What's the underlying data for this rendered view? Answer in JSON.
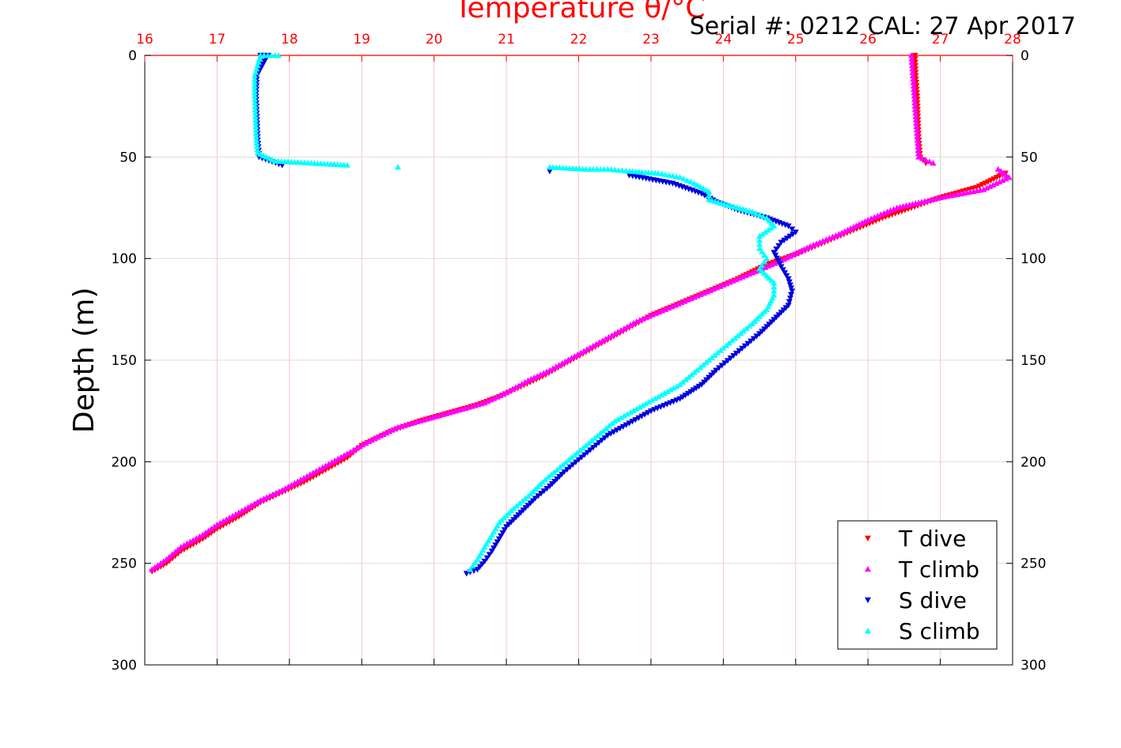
{
  "colors": {
    "t_dive": "#ff0000",
    "t_climb": "#ff00ff",
    "s_dive": "#0000dd",
    "s_climb": "#00ffff",
    "top_axis": "#ff0000",
    "grid": "#f2c8c8"
  },
  "chart_data": {
    "type": "scatter",
    "title": "Temperature θ/°C",
    "annotation": "Serial #: 0212  CAL: 27 Apr 2017",
    "xlabel": "Temperature θ/°C",
    "ylabel": "Depth (m)",
    "xlim": [
      16,
      28
    ],
    "ylim": [
      0,
      300
    ],
    "y_reversed": true,
    "xticks": [
      16,
      17,
      18,
      19,
      20,
      21,
      22,
      23,
      24,
      25,
      26,
      27,
      28
    ],
    "yticks": [
      0,
      50,
      100,
      150,
      200,
      250,
      300
    ],
    "grid": true,
    "legend_position": "bottom-right",
    "series": [
      {
        "name": "T dive",
        "marker": "triangle-down",
        "color": "#ff0000",
        "points": [
          [
            26.65,
            0
          ],
          [
            26.66,
            10
          ],
          [
            26.68,
            20
          ],
          [
            26.69,
            30
          ],
          [
            26.7,
            40
          ],
          [
            26.72,
            50
          ],
          [
            26.8,
            53
          ],
          [
            27.9,
            58
          ],
          [
            27.5,
            65
          ],
          [
            27.0,
            70
          ],
          [
            26.6,
            75
          ],
          [
            26.2,
            80
          ],
          [
            25.8,
            86
          ],
          [
            25.4,
            92
          ],
          [
            25.0,
            98
          ],
          [
            24.6,
            103
          ],
          [
            24.2,
            110
          ],
          [
            23.8,
            116
          ],
          [
            23.4,
            122
          ],
          [
            23.0,
            128
          ],
          [
            22.7,
            134
          ],
          [
            22.4,
            140
          ],
          [
            22.1,
            146
          ],
          [
            21.8,
            152
          ],
          [
            21.5,
            158
          ],
          [
            21.2,
            163
          ],
          [
            20.9,
            168
          ],
          [
            20.6,
            172
          ],
          [
            20.2,
            176
          ],
          [
            19.8,
            180
          ],
          [
            19.4,
            185
          ],
          [
            19.0,
            192
          ],
          [
            18.8,
            198
          ],
          [
            18.5,
            204
          ],
          [
            18.2,
            210
          ],
          [
            17.9,
            215
          ],
          [
            17.6,
            220
          ],
          [
            17.3,
            227
          ],
          [
            17.0,
            233
          ],
          [
            16.8,
            238
          ],
          [
            16.5,
            244
          ],
          [
            16.3,
            250
          ],
          [
            16.1,
            254
          ]
        ]
      },
      {
        "name": "T climb",
        "marker": "triangle-up",
        "color": "#ff00ff",
        "points": [
          [
            26.6,
            0
          ],
          [
            26.62,
            10
          ],
          [
            26.64,
            20
          ],
          [
            26.66,
            30
          ],
          [
            26.68,
            40
          ],
          [
            26.7,
            50
          ],
          [
            26.9,
            53
          ],
          [
            27.8,
            56
          ],
          [
            27.95,
            60
          ],
          [
            27.6,
            66
          ],
          [
            27.0,
            70
          ],
          [
            26.4,
            75
          ],
          [
            26.0,
            81
          ],
          [
            25.6,
            88
          ],
          [
            25.2,
            94
          ],
          [
            24.8,
            101
          ],
          [
            24.4,
            107
          ],
          [
            24.0,
            113
          ],
          [
            23.6,
            119
          ],
          [
            23.2,
            125
          ],
          [
            22.8,
            131
          ],
          [
            22.5,
            137
          ],
          [
            22.2,
            143
          ],
          [
            21.9,
            149
          ],
          [
            21.6,
            155
          ],
          [
            21.3,
            160
          ],
          [
            21.0,
            166
          ],
          [
            20.7,
            171
          ],
          [
            20.3,
            175
          ],
          [
            19.9,
            179
          ],
          [
            19.5,
            183
          ],
          [
            19.1,
            190
          ],
          [
            18.8,
            196
          ],
          [
            18.5,
            202
          ],
          [
            18.2,
            208
          ],
          [
            17.9,
            214
          ],
          [
            17.6,
            219
          ],
          [
            17.3,
            225
          ],
          [
            17.0,
            231
          ],
          [
            16.8,
            236
          ],
          [
            16.5,
            242
          ],
          [
            16.3,
            248
          ],
          [
            16.1,
            253
          ]
        ]
      },
      {
        "name": "S dive",
        "marker": "triangle-down",
        "color": "#0000dd",
        "points": [
          [
            17.6,
            0
          ],
          [
            17.7,
            0
          ],
          [
            17.55,
            10
          ],
          [
            17.54,
            20
          ],
          [
            17.55,
            30
          ],
          [
            17.56,
            40
          ],
          [
            17.58,
            50
          ],
          [
            17.9,
            54
          ],
          [
            21.6,
            57
          ],
          [
            22.7,
            59
          ],
          [
            23.3,
            63
          ],
          [
            23.7,
            68
          ],
          [
            23.9,
            72
          ],
          [
            24.2,
            76
          ],
          [
            24.6,
            80
          ],
          [
            24.9,
            84
          ],
          [
            25.0,
            87
          ],
          [
            24.8,
            92
          ],
          [
            24.7,
            97
          ],
          [
            24.8,
            104
          ],
          [
            24.9,
            110
          ],
          [
            24.95,
            116
          ],
          [
            24.9,
            123
          ],
          [
            24.7,
            130
          ],
          [
            24.5,
            137
          ],
          [
            24.3,
            143
          ],
          [
            24.1,
            149
          ],
          [
            23.9,
            155
          ],
          [
            23.7,
            162
          ],
          [
            23.4,
            169
          ],
          [
            23.0,
            175
          ],
          [
            22.7,
            181
          ],
          [
            22.4,
            187
          ],
          [
            22.2,
            193
          ],
          [
            22.0,
            199
          ],
          [
            21.8,
            205
          ],
          [
            21.6,
            212
          ],
          [
            21.4,
            218
          ],
          [
            21.2,
            225
          ],
          [
            21.0,
            232
          ],
          [
            20.9,
            238
          ],
          [
            20.8,
            244
          ],
          [
            20.7,
            249
          ],
          [
            20.6,
            253
          ],
          [
            20.45,
            255
          ]
        ]
      },
      {
        "name": "S climb",
        "marker": "triangle-up",
        "color": "#00ffff",
        "points": [
          [
            17.85,
            0
          ],
          [
            17.6,
            0
          ],
          [
            17.52,
            10
          ],
          [
            17.52,
            20
          ],
          [
            17.53,
            30
          ],
          [
            17.54,
            40
          ],
          [
            17.56,
            48
          ],
          [
            17.8,
            52
          ],
          [
            18.3,
            53
          ],
          [
            18.8,
            54
          ],
          [
            19.5,
            55
          ],
          [
            21.6,
            55
          ],
          [
            22.1,
            56
          ],
          [
            22.4,
            56
          ],
          [
            22.7,
            57
          ],
          [
            23.1,
            58
          ],
          [
            23.4,
            60
          ],
          [
            23.6,
            63
          ],
          [
            23.8,
            67
          ],
          [
            23.8,
            71
          ],
          [
            24.1,
            74
          ],
          [
            24.4,
            77
          ],
          [
            24.6,
            80
          ],
          [
            24.7,
            84
          ],
          [
            24.5,
            89
          ],
          [
            24.5,
            95
          ],
          [
            24.6,
            100
          ],
          [
            24.5,
            105
          ],
          [
            24.7,
            112
          ],
          [
            24.7,
            118
          ],
          [
            24.6,
            125
          ],
          [
            24.4,
            132
          ],
          [
            24.2,
            138
          ],
          [
            24.0,
            144
          ],
          [
            23.8,
            150
          ],
          [
            23.6,
            156
          ],
          [
            23.4,
            162
          ],
          [
            23.1,
            168
          ],
          [
            22.8,
            174
          ],
          [
            22.5,
            180
          ],
          [
            22.3,
            186
          ],
          [
            22.1,
            192
          ],
          [
            21.9,
            198
          ],
          [
            21.7,
            204
          ],
          [
            21.5,
            210
          ],
          [
            21.3,
            217
          ],
          [
            21.1,
            223
          ],
          [
            20.9,
            230
          ],
          [
            20.8,
            236
          ],
          [
            20.7,
            242
          ],
          [
            20.6,
            248
          ],
          [
            20.5,
            253
          ]
        ]
      }
    ]
  }
}
